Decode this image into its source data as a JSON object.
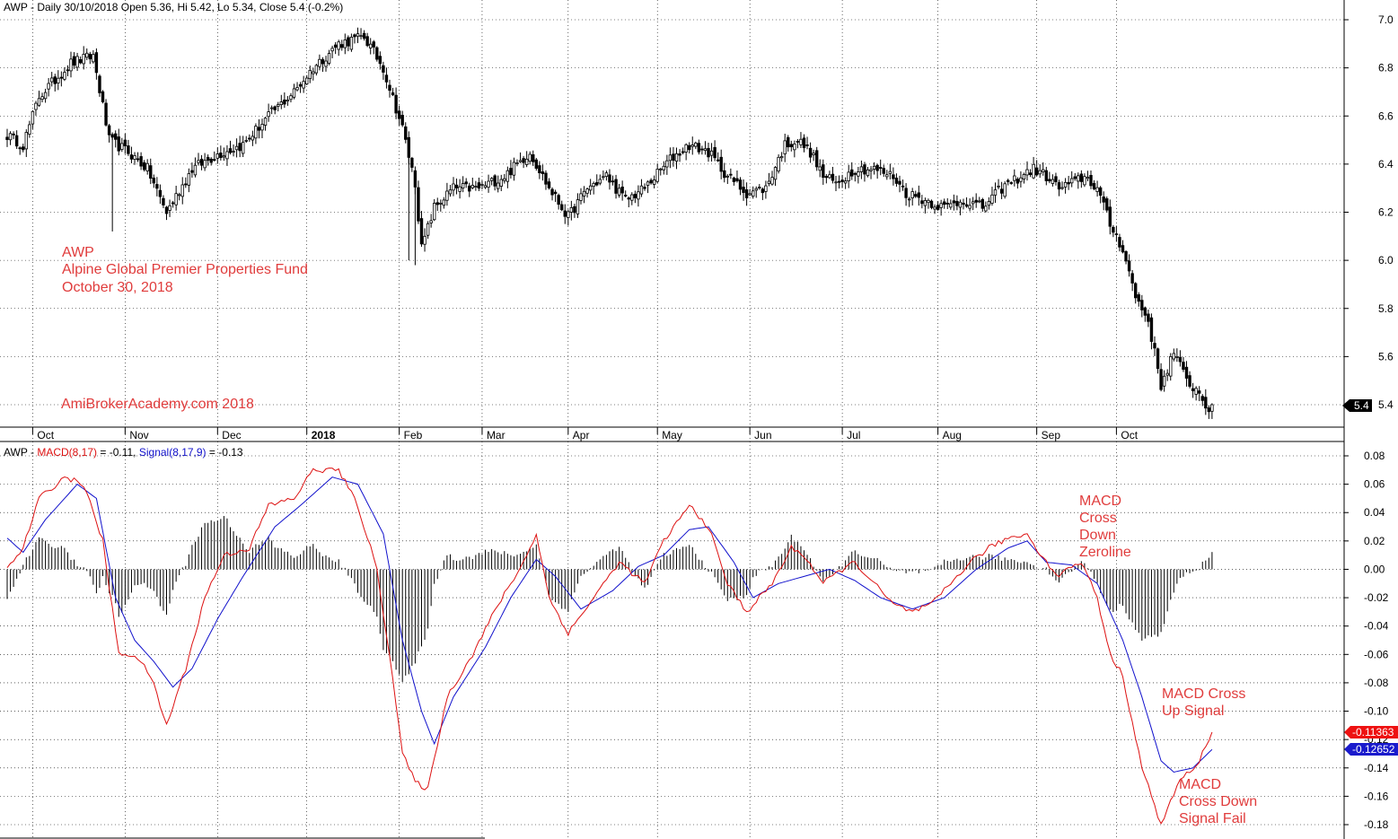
{
  "colors": {
    "background": "#ffffff",
    "candle": "#000000",
    "macd": "#dd1111",
    "signal": "#1111cc",
    "histogram": "#000000",
    "annotation": "#e03c3c",
    "grid": "#000000"
  },
  "price_header": "AWP - Daily 30/10/2018 Open 5.36, Hi 5.42, Lo 5.34, Close 5.4 (-0.2%)",
  "macd_header": {
    "prefix": "AWP - ",
    "macd_label": "MACD(8,17)",
    "macd_value": " = -0.11, ",
    "signal_label": "Signal(8,17,9)",
    "signal_value": " = -0.13"
  },
  "annotations": {
    "symbol": "AWP",
    "fund_name": "Alpine Global Premier Properties Fund",
    "date": "October 30, 2018",
    "watermark": "AmiBrokerAcademy.com  2018",
    "zero_cross": [
      "MACD",
      "Cross",
      "Down",
      "Zeroline"
    ],
    "cross_up": [
      "MACD Cross",
      "Up Signal"
    ],
    "cross_fail": [
      "MACD",
      "Cross Down",
      "Signal Fail"
    ]
  },
  "badges": {
    "price_last": "5.4",
    "macd_last": "-0.11363",
    "signal_last": "-0.12652"
  },
  "chart_data": [
    {
      "type": "candlestick",
      "title": "AWP - Daily 30/10/2018 Open 5.36, Hi 5.42, Lo 5.34, Close 5.4 (-0.2%)",
      "ylim": [
        5.3,
        7.06
      ],
      "y_ticks": [
        "7.0",
        "6.8",
        "6.6",
        "6.4",
        "6.2",
        "6.0",
        "5.8",
        "5.6",
        "5.4"
      ],
      "x_labels": [
        "Oct",
        "Nov",
        "Dec",
        "2018",
        "Feb",
        "Mar",
        "Apr",
        "May",
        "Jun",
        "Jul",
        "Aug",
        "Sep",
        "Oct"
      ],
      "close_anchors": [
        [
          0,
          6.52
        ],
        [
          5,
          6.48
        ],
        [
          10,
          6.68
        ],
        [
          20,
          6.82
        ],
        [
          27,
          6.85
        ],
        [
          32,
          6.5
        ],
        [
          38,
          6.45
        ],
        [
          44,
          6.38
        ],
        [
          50,
          6.2
        ],
        [
          58,
          6.38
        ],
        [
          66,
          6.44
        ],
        [
          74,
          6.48
        ],
        [
          82,
          6.6
        ],
        [
          90,
          6.7
        ],
        [
          96,
          6.8
        ],
        [
          104,
          6.9
        ],
        [
          112,
          6.93
        ],
        [
          118,
          6.8
        ],
        [
          124,
          6.55
        ],
        [
          128,
          6.32
        ],
        [
          130,
          6.05
        ],
        [
          134,
          6.22
        ],
        [
          140,
          6.3
        ],
        [
          148,
          6.3
        ],
        [
          156,
          6.35
        ],
        [
          164,
          6.45
        ],
        [
          170,
          6.3
        ],
        [
          176,
          6.18
        ],
        [
          182,
          6.3
        ],
        [
          188,
          6.35
        ],
        [
          194,
          6.25
        ],
        [
          200,
          6.3
        ],
        [
          208,
          6.42
        ],
        [
          214,
          6.48
        ],
        [
          220,
          6.45
        ],
        [
          226,
          6.35
        ],
        [
          232,
          6.28
        ],
        [
          238,
          6.3
        ],
        [
          244,
          6.48
        ],
        [
          248,
          6.5
        ],
        [
          252,
          6.45
        ],
        [
          256,
          6.35
        ],
        [
          260,
          6.32
        ],
        [
          266,
          6.38
        ],
        [
          272,
          6.38
        ],
        [
          278,
          6.35
        ],
        [
          282,
          6.28
        ],
        [
          288,
          6.25
        ],
        [
          294,
          6.22
        ],
        [
          300,
          6.25
        ],
        [
          306,
          6.22
        ],
        [
          312,
          6.3
        ],
        [
          318,
          6.35
        ],
        [
          322,
          6.38
        ],
        [
          326,
          6.35
        ],
        [
          330,
          6.3
        ],
        [
          334,
          6.32
        ],
        [
          338,
          6.35
        ],
        [
          342,
          6.3
        ],
        [
          346,
          6.15
        ],
        [
          350,
          6.05
        ],
        [
          354,
          5.85
        ],
        [
          358,
          5.75
        ],
        [
          362,
          5.48
        ],
        [
          366,
          5.62
        ],
        [
          370,
          5.5
        ],
        [
          374,
          5.45
        ],
        [
          377,
          5.38
        ],
        [
          378,
          5.4
        ]
      ],
      "last_close": 5.4
    },
    {
      "type": "line",
      "title": "AWP - MACD(8,17) = -0.11, Signal(8,17,9) = -0.13",
      "ylim": [
        -0.185,
        0.085
      ],
      "y_ticks": [
        "0.08",
        "0.06",
        "0.04",
        "0.02",
        "0.00",
        "-0.02",
        "-0.04",
        "-0.06",
        "-0.08",
        "-0.10",
        "-0.12",
        "-0.14",
        "-0.16",
        "-0.18"
      ],
      "series": [
        {
          "name": "MACD(8,17)",
          "value": -0.11,
          "anchors": [
            [
              0,
              0.0
            ],
            [
              5,
              0.015
            ],
            [
              10,
              0.05
            ],
            [
              18,
              0.065
            ],
            [
              24,
              0.06
            ],
            [
              30,
              0.02
            ],
            [
              35,
              -0.06
            ],
            [
              40,
              -0.06
            ],
            [
              45,
              -0.075
            ],
            [
              50,
              -0.11
            ],
            [
              56,
              -0.07
            ],
            [
              62,
              -0.02
            ],
            [
              68,
              0.01
            ],
            [
              76,
              0.015
            ],
            [
              82,
              0.045
            ],
            [
              90,
              0.05
            ],
            [
              96,
              0.07
            ],
            [
              104,
              0.07
            ],
            [
              110,
              0.045
            ],
            [
              116,
              0.0
            ],
            [
              120,
              -0.06
            ],
            [
              124,
              -0.13
            ],
            [
              128,
              -0.15
            ],
            [
              132,
              -0.155
            ],
            [
              138,
              -0.09
            ],
            [
              146,
              -0.06
            ],
            [
              154,
              -0.025
            ],
            [
              162,
              0.005
            ],
            [
              166,
              0.025
            ],
            [
              170,
              -0.02
            ],
            [
              176,
              -0.045
            ],
            [
              184,
              -0.02
            ],
            [
              192,
              0.005
            ],
            [
              200,
              -0.01
            ],
            [
              206,
              0.02
            ],
            [
              214,
              0.045
            ],
            [
              220,
              0.03
            ],
            [
              226,
              -0.01
            ],
            [
              232,
              -0.03
            ],
            [
              240,
              -0.01
            ],
            [
              246,
              0.015
            ],
            [
              250,
              0.01
            ],
            [
              256,
              -0.01
            ],
            [
              262,
              0.0
            ],
            [
              266,
              0.005
            ],
            [
              272,
              -0.01
            ],
            [
              278,
              -0.025
            ],
            [
              284,
              -0.03
            ],
            [
              290,
              -0.025
            ],
            [
              296,
              -0.01
            ],
            [
              302,
              0.005
            ],
            [
              308,
              0.015
            ],
            [
              314,
              0.022
            ],
            [
              320,
              0.025
            ],
            [
              326,
              0.005
            ],
            [
              330,
              -0.005
            ],
            [
              334,
              0.003
            ],
            [
              338,
              0.002
            ],
            [
              342,
              -0.02
            ],
            [
              346,
              -0.06
            ],
            [
              350,
              -0.075
            ],
            [
              356,
              -0.14
            ],
            [
              362,
              -0.18
            ],
            [
              368,
              -0.148
            ],
            [
              373,
              -0.14
            ],
            [
              378,
              -0.114
            ]
          ]
        },
        {
          "name": "Signal(8,17,9)",
          "value": -0.13,
          "anchors": [
            [
              0,
              0.022
            ],
            [
              5,
              0.012
            ],
            [
              12,
              0.035
            ],
            [
              22,
              0.06
            ],
            [
              28,
              0.05
            ],
            [
              34,
              -0.02
            ],
            [
              40,
              -0.05
            ],
            [
              46,
              -0.065
            ],
            [
              52,
              -0.083
            ],
            [
              58,
              -0.07
            ],
            [
              66,
              -0.035
            ],
            [
              74,
              -0.005
            ],
            [
              84,
              0.03
            ],
            [
              92,
              0.045
            ],
            [
              102,
              0.065
            ],
            [
              110,
              0.06
            ],
            [
              118,
              0.025
            ],
            [
              124,
              -0.05
            ],
            [
              130,
              -0.1
            ],
            [
              134,
              -0.123
            ],
            [
              140,
              -0.09
            ],
            [
              150,
              -0.055
            ],
            [
              158,
              -0.02
            ],
            [
              166,
              0.007
            ],
            [
              172,
              -0.005
            ],
            [
              180,
              -0.028
            ],
            [
              190,
              -0.015
            ],
            [
              198,
              0.002
            ],
            [
              206,
              0.01
            ],
            [
              214,
              0.028
            ],
            [
              220,
              0.03
            ],
            [
              228,
              0.005
            ],
            [
              234,
              -0.02
            ],
            [
              242,
              -0.01
            ],
            [
              250,
              -0.005
            ],
            [
              258,
              0.0
            ],
            [
              266,
              -0.008
            ],
            [
              274,
              -0.02
            ],
            [
              284,
              -0.028
            ],
            [
              294,
              -0.02
            ],
            [
              304,
              0.0
            ],
            [
              314,
              0.015
            ],
            [
              320,
              0.02
            ],
            [
              326,
              0.005
            ],
            [
              334,
              0.003
            ],
            [
              342,
              -0.01
            ],
            [
              350,
              -0.05
            ],
            [
              356,
              -0.09
            ],
            [
              362,
              -0.135
            ],
            [
              366,
              -0.143
            ],
            [
              372,
              -0.14
            ],
            [
              378,
              -0.127
            ]
          ]
        }
      ]
    }
  ]
}
